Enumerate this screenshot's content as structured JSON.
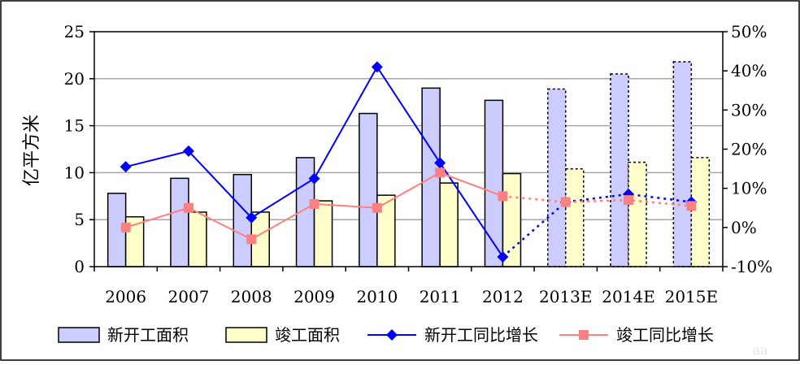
{
  "chart_data": {
    "type": "bar",
    "categories": [
      "2006",
      "2007",
      "2008",
      "2009",
      "2010",
      "2011",
      "2012",
      "2013E",
      "2014E",
      "2015E"
    ],
    "ylabel": "亿平方米",
    "ylim": [
      0,
      25
    ],
    "y_ticks": [
      "0",
      "5",
      "10",
      "15",
      "20",
      "25"
    ],
    "y2lim": [
      -10,
      50
    ],
    "y2_ticks": [
      "-10%",
      "0%",
      "10%",
      "20%",
      "30%",
      "40%",
      "50%"
    ],
    "grid": true,
    "legend_position": "bottom",
    "forecast_from_index": 7,
    "series": [
      {
        "name": "新开工面积",
        "type": "bar",
        "axis": "left",
        "color": "#ccccff",
        "values": [
          7.8,
          9.4,
          9.8,
          11.6,
          16.3,
          19.0,
          17.7,
          18.9,
          20.5,
          21.8
        ]
      },
      {
        "name": "竣工面积",
        "type": "bar",
        "axis": "left",
        "color": "#ffffcc",
        "values": [
          5.3,
          5.8,
          5.8,
          7.0,
          7.6,
          8.9,
          9.9,
          10.4,
          11.1,
          11.6
        ]
      },
      {
        "name": "新开工同比增长",
        "type": "line",
        "axis": "right",
        "color": "#0000ff",
        "marker": "diamond",
        "values": [
          15.5,
          19.5,
          2.5,
          12.5,
          41.0,
          16.5,
          -7.5,
          6.5,
          8.5,
          6.5
        ]
      },
      {
        "name": "竣工同比增长",
        "type": "line",
        "axis": "right",
        "color": "#ff8080",
        "marker": "square",
        "values": [
          0.0,
          5.0,
          -3.0,
          6.0,
          5.0,
          14.0,
          8.0,
          6.5,
          7.0,
          5.5
        ]
      }
    ]
  },
  "watermark": "aa"
}
